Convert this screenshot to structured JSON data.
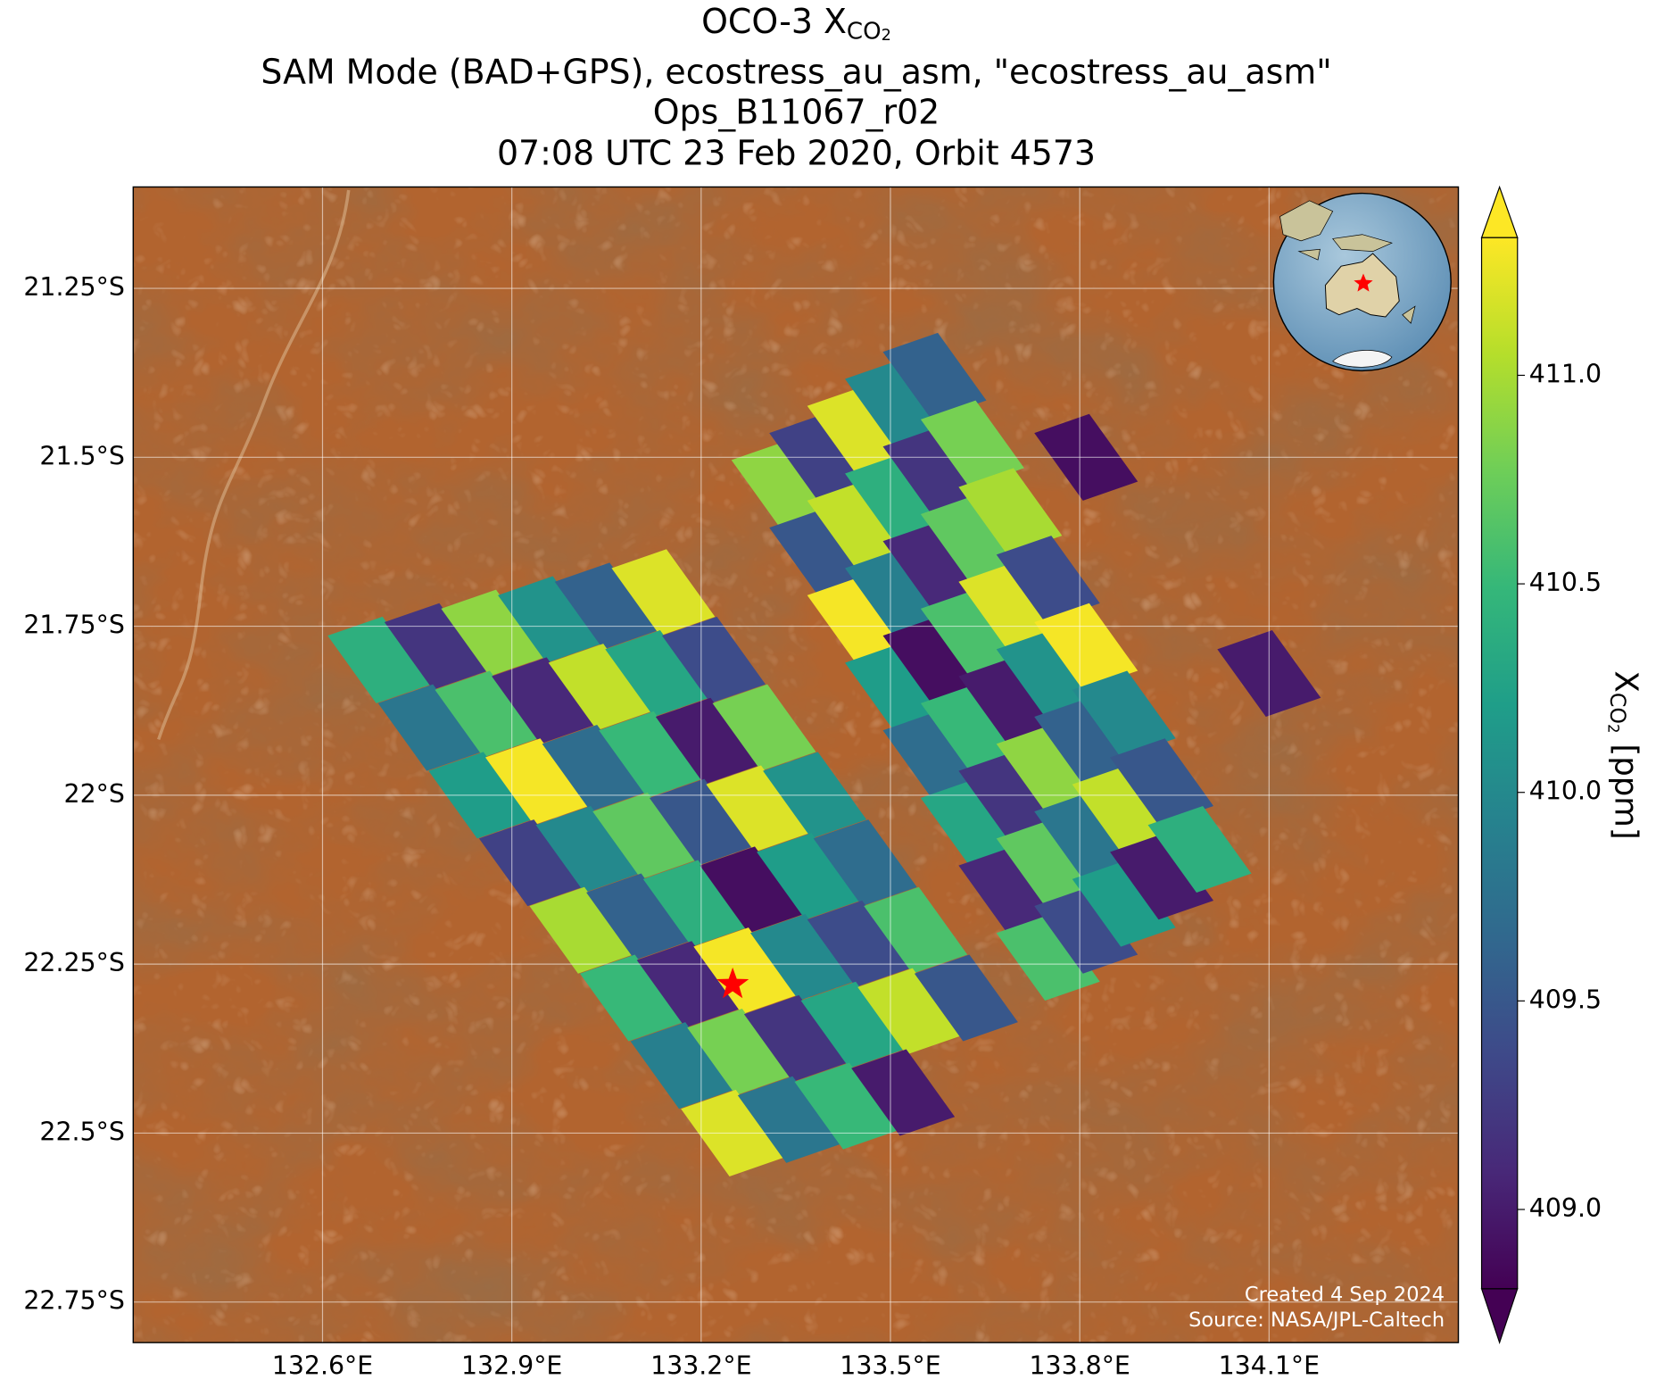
{
  "chart_data": {
    "type": "map",
    "title": {
      "text": "OCO-3 X",
      "sub": "CO",
      "subsub": "2"
    },
    "subtitles": [
      "SAM Mode (BAD+GPS), ecostress_au_asm, \"ecostress_au_asm\"",
      "Ops_B11067_r02",
      "07:08 UTC 23 Feb 2020, Orbit 4573"
    ],
    "xlim": [
      132.3,
      134.4
    ],
    "ylim": [
      -22.81,
      -21.1
    ],
    "xticks": [
      {
        "value": 132.6,
        "label": "132.6°E"
      },
      {
        "value": 132.9,
        "label": "132.9°E"
      },
      {
        "value": 133.2,
        "label": "133.2°E"
      },
      {
        "value": 133.5,
        "label": "133.5°E"
      },
      {
        "value": 133.8,
        "label": "133.8°E"
      },
      {
        "value": 134.1,
        "label": "134.1°E"
      }
    ],
    "yticks": [
      {
        "value": -21.25,
        "label": "21.25°S"
      },
      {
        "value": -21.5,
        "label": "21.5°S"
      },
      {
        "value": -21.75,
        "label": "21.75°S"
      },
      {
        "value": -22,
        "label": "22°S"
      },
      {
        "value": -22.25,
        "label": "22.25°S"
      },
      {
        "value": -22.5,
        "label": "22.5°S"
      },
      {
        "value": -22.75,
        "label": "22.75°S"
      }
    ],
    "grid": true,
    "soundings": {
      "lon": [
        132.69,
        132.78,
        132.87,
        132.96,
        133.05,
        133.14,
        132.77,
        132.86,
        132.95,
        133.04,
        133.13,
        133.22,
        132.85,
        132.94,
        133.03,
        133.12,
        133.21,
        133.3,
        132.93,
        133.02,
        133.11,
        133.2,
        133.29,
        133.38,
        133.01,
        133.1,
        133.19,
        133.28,
        133.37,
        133.46,
        133.09,
        133.18,
        133.27,
        133.36,
        133.45,
        133.54,
        133.17,
        133.26,
        133.35,
        133.44,
        133.53,
        133.62,
        133.25,
        133.34,
        133.43,
        133.52,
        133.33,
        133.39,
        133.45,
        133.51,
        133.57,
        133.39,
        133.45,
        133.51,
        133.57,
        133.63,
        133.45,
        133.51,
        133.57,
        133.63,
        133.69,
        133.51,
        133.57,
        133.63,
        133.69,
        133.75,
        133.57,
        133.63,
        133.69,
        133.75,
        133.81,
        133.63,
        133.69,
        133.75,
        133.81,
        133.87,
        133.69,
        133.75,
        133.81,
        133.87,
        133.93,
        133.75,
        133.81,
        133.87,
        133.93,
        133.99,
        133.81,
        134.1
      ],
      "lat": [
        -21.8,
        -21.78,
        -21.76,
        -21.74,
        -21.72,
        -21.7,
        -21.9,
        -21.88,
        -21.86,
        -21.84,
        -21.82,
        -21.8,
        -22.0,
        -21.98,
        -21.96,
        -21.94,
        -21.92,
        -21.9,
        -22.1,
        -22.08,
        -22.06,
        -22.04,
        -22.02,
        -22.0,
        -22.2,
        -22.18,
        -22.16,
        -22.14,
        -22.12,
        -22.1,
        -22.3,
        -22.28,
        -22.26,
        -22.24,
        -22.22,
        -22.2,
        -22.4,
        -22.38,
        -22.36,
        -22.34,
        -22.32,
        -22.3,
        -22.5,
        -22.48,
        -22.46,
        -22.44,
        -21.54,
        -21.5,
        -21.46,
        -21.42,
        -21.38,
        -21.64,
        -21.6,
        -21.56,
        -21.52,
        -21.48,
        -21.74,
        -21.7,
        -21.66,
        -21.62,
        -21.58,
        -21.84,
        -21.8,
        -21.76,
        -21.72,
        -21.68,
        -21.94,
        -21.9,
        -21.86,
        -21.82,
        -21.78,
        -22.04,
        -22.0,
        -21.96,
        -21.92,
        -21.88,
        -22.14,
        -22.1,
        -22.06,
        -22.02,
        -21.98,
        -22.24,
        -22.2,
        -22.16,
        -22.12,
        -22.08,
        -21.5,
        -21.82
      ],
      "xco2": [
        410.4,
        409.2,
        410.9,
        410.1,
        409.6,
        411.2,
        409.8,
        410.6,
        409.1,
        411.1,
        410.3,
        409.4,
        410.2,
        411.3,
        409.7,
        410.5,
        409.0,
        410.8,
        409.3,
        410.0,
        410.7,
        409.5,
        411.2,
        410.1,
        411.0,
        409.6,
        410.4,
        408.9,
        410.2,
        409.7,
        410.5,
        409.1,
        411.3,
        410.0,
        409.4,
        410.6,
        409.9,
        410.8,
        409.2,
        410.3,
        411.1,
        409.5,
        411.2,
        409.8,
        410.5,
        409.0,
        410.9,
        409.3,
        411.2,
        410.0,
        409.6,
        409.5,
        411.1,
        410.4,
        409.2,
        410.8,
        411.3,
        409.9,
        409.1,
        410.7,
        411.0,
        410.2,
        408.9,
        410.6,
        411.2,
        409.4,
        409.7,
        410.5,
        409.0,
        410.1,
        411.3,
        410.3,
        409.2,
        410.9,
        409.6,
        410.0,
        409.1,
        410.7,
        409.8,
        411.1,
        409.5,
        410.6,
        409.4,
        410.2,
        409.0,
        410.4,
        408.9,
        409.0
      ]
    },
    "target": {
      "lon": 133.25,
      "lat": -22.28,
      "color": "#ff0000"
    },
    "colorbar": {
      "label": {
        "text": "X",
        "sub": "CO",
        "subsub": "2",
        "unit": "[ppm]"
      },
      "colormap": "viridis",
      "clim": [
        408.81,
        411.33
      ],
      "ticks": [
        {
          "value": 409,
          "label": "409.0"
        },
        409.5,
        {
          "value": 410,
          "label": "410.0"
        },
        410.5,
        {
          "value": 411,
          "label": "411.0"
        }
      ]
    },
    "credits": [
      "Created 4 Sep 2024",
      "Source: NASA/JPL-Caltech"
    ]
  }
}
